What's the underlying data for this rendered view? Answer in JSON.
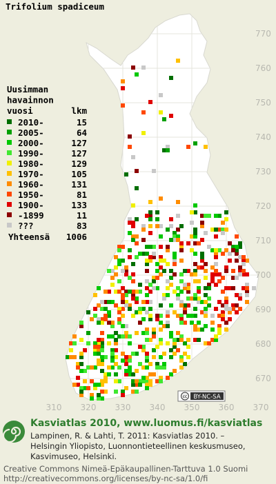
{
  "title": "Trifolium spadiceum",
  "legend": {
    "header": [
      "Uusimman",
      "havainnon"
    ],
    "year_heading": "vuosi",
    "count_heading": "lkm",
    "rows": [
      {
        "label": "2010-",
        "count": 15,
        "color": "#006e00"
      },
      {
        "label": "2005-",
        "count": 64,
        "color": "#00a000"
      },
      {
        "label": "2000-",
        "count": 127,
        "color": "#00c800"
      },
      {
        "label": "1990-",
        "count": 127,
        "color": "#40e830"
      },
      {
        "label": "1980-",
        "count": 129,
        "color": "#f0f000"
      },
      {
        "label": "1970-",
        "count": 105,
        "color": "#ffc000"
      },
      {
        "label": "1960-",
        "count": 131,
        "color": "#ff8c00"
      },
      {
        "label": "1950-",
        "count": 81,
        "color": "#ff4800"
      },
      {
        "label": "1900-",
        "count": 133,
        "color": "#e00000"
      },
      {
        "label": "-1899",
        "count": 11,
        "color": "#8c0000"
      },
      {
        "label": "???",
        "count": 83,
        "color": "#c8c8c8"
      }
    ],
    "total_label": "Yhteensä",
    "total": 1006
  },
  "y_ticks": [
    770,
    760,
    750,
    740,
    730,
    720,
    710,
    700,
    690,
    680,
    670
  ],
  "x_ticks": [
    310,
    320,
    330,
    340,
    350,
    360,
    370
  ],
  "badge": "BY-NC-SA",
  "footer": {
    "site": "Kasviatlas 2010, www.luomus.fi/kasviatlas",
    "citation": [
      "Lampinen, R. & Lahti, T. 2011: Kasviatlas 2010. –",
      "Helsingin Yliopisto, Luonnontieteellinen keskusmuseo,",
      "Kasvimuseo, Helsinki."
    ],
    "license": [
      "Creative Commons Nimeä-Epäkaupallinen-Tarttuva 1.0 Suomi",
      "http://creativecommons.org/licenses/by-nc-sa/1.0/fi"
    ]
  }
}
